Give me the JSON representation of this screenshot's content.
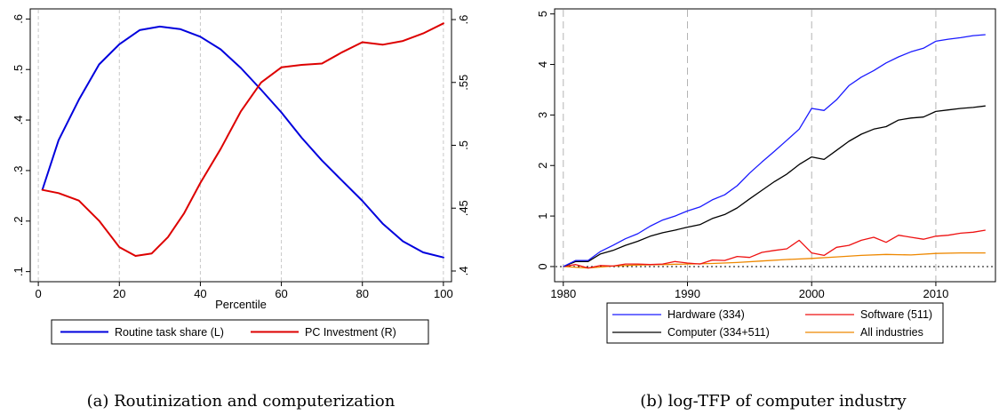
{
  "chart_data": [
    {
      "type": "line",
      "caption": "(a) Routinization and computerization",
      "xlabel": "Percentile",
      "xlim": [
        0,
        100
      ],
      "xticks": [
        0,
        20,
        40,
        60,
        80,
        100
      ],
      "xtick_labels": [
        "0",
        "20",
        "40",
        "60",
        "80",
        "100"
      ],
      "vgrid": [
        0,
        20,
        40,
        60,
        80,
        100
      ],
      "ylim_left": [
        0.1,
        0.6
      ],
      "yticks_left": [
        0.1,
        0.2,
        0.3,
        0.4,
        0.5,
        0.6
      ],
      "ytick_labels_left": [
        ".1",
        ".2",
        ".3",
        ".4",
        ".5",
        ".6"
      ],
      "ylim_right": [
        0.4,
        0.6
      ],
      "yticks_right": [
        0.4,
        0.45,
        0.5,
        0.55,
        0.6
      ],
      "ytick_labels_right": [
        ".4",
        ".45",
        ".5",
        ".55",
        ".6"
      ],
      "legend_position": "bottom",
      "series": [
        {
          "name": "Routine task share (L)",
          "axis": "left",
          "color": "#0000dd",
          "x": [
            1,
            5,
            10,
            15,
            20,
            25,
            30,
            35,
            40,
            45,
            50,
            55,
            60,
            65,
            70,
            75,
            80,
            85,
            90,
            95,
            100
          ],
          "y": [
            0.262,
            0.36,
            0.44,
            0.51,
            0.55,
            0.578,
            0.585,
            0.58,
            0.565,
            0.54,
            0.503,
            0.46,
            0.415,
            0.365,
            0.32,
            0.28,
            0.24,
            0.195,
            0.16,
            0.138,
            0.128
          ]
        },
        {
          "name": "PC Investment (R)",
          "axis": "right",
          "color": "#dd0000",
          "x": [
            1,
            5,
            10,
            15,
            20,
            24,
            28,
            32,
            36,
            40,
            45,
            50,
            55,
            60,
            65,
            70,
            75,
            80,
            85,
            90,
            95,
            100
          ],
          "y": [
            0.4645,
            0.462,
            0.456,
            0.44,
            0.419,
            0.412,
            0.414,
            0.427,
            0.446,
            0.47,
            0.497,
            0.527,
            0.55,
            0.562,
            0.564,
            0.565,
            0.574,
            0.582,
            0.58,
            0.583,
            0.589,
            0.597
          ]
        }
      ]
    },
    {
      "type": "line",
      "caption": "(b) log-TFP of computer industry",
      "xlim": [
        1979.3,
        2014.8
      ],
      "xticks": [
        1980,
        1990,
        2000,
        2010
      ],
      "xtick_labels": [
        "1980",
        "1990",
        "2000",
        "2010"
      ],
      "vgrid": [
        1980,
        1990,
        2000,
        2010
      ],
      "ylim": [
        -0.3,
        5.1
      ],
      "yticks": [
        0,
        1,
        2,
        3,
        4,
        5
      ],
      "ytick_labels": [
        "0",
        "1",
        "2",
        "3",
        "4",
        "5"
      ],
      "reference_line_y": 0,
      "legend_position": "bottom",
      "series": [
        {
          "name": "Hardware (334)",
          "color": "#1a1aff",
          "x": [
            1980,
            1981,
            1982,
            1983,
            1984,
            1985,
            1986,
            1987,
            1988,
            1989,
            1990,
            1991,
            1992,
            1993,
            1994,
            1995,
            1996,
            1997,
            1998,
            1999,
            2000,
            2001,
            2002,
            2003,
            2004,
            2005,
            2006,
            2007,
            2008,
            2009,
            2010,
            2011,
            2012,
            2013,
            2014
          ],
          "y": [
            0,
            0.12,
            0.12,
            0.3,
            0.42,
            0.55,
            0.65,
            0.8,
            0.92,
            1.0,
            1.1,
            1.18,
            1.32,
            1.42,
            1.6,
            1.85,
            2.07,
            2.28,
            2.5,
            2.72,
            3.13,
            3.09,
            3.3,
            3.58,
            3.75,
            3.88,
            4.03,
            4.15,
            4.25,
            4.32,
            4.46,
            4.5,
            4.53,
            4.57,
            4.59
          ]
        },
        {
          "name": "Software (511)",
          "color": "#ee1111",
          "x": [
            1980,
            1981,
            1982,
            1983,
            1984,
            1985,
            1986,
            1987,
            1988,
            1989,
            1990,
            1991,
            1992,
            1993,
            1994,
            1995,
            1996,
            1997,
            1998,
            1999,
            2000,
            2001,
            2002,
            2003,
            2004,
            2005,
            2006,
            2007,
            2008,
            2009,
            2010,
            2011,
            2012,
            2013,
            2014
          ],
          "y": [
            0,
            0.04,
            -0.03,
            0.02,
            0.01,
            0.05,
            0.05,
            0.04,
            0.05,
            0.1,
            0.07,
            0.05,
            0.13,
            0.12,
            0.2,
            0.18,
            0.28,
            0.32,
            0.35,
            0.52,
            0.27,
            0.22,
            0.38,
            0.42,
            0.52,
            0.58,
            0.48,
            0.62,
            0.58,
            0.54,
            0.6,
            0.62,
            0.66,
            0.68,
            0.72
          ]
        },
        {
          "name": "Computer (334+511)",
          "color": "#000000",
          "x": [
            1980,
            1981,
            1982,
            1983,
            1984,
            1985,
            1986,
            1987,
            1988,
            1989,
            1990,
            1991,
            1992,
            1993,
            1994,
            1995,
            1996,
            1997,
            1998,
            1999,
            2000,
            2001,
            2002,
            2003,
            2004,
            2005,
            2006,
            2007,
            2008,
            2009,
            2010,
            2011,
            2012,
            2013,
            2014
          ],
          "y": [
            0,
            0.1,
            0.1,
            0.25,
            0.32,
            0.42,
            0.5,
            0.6,
            0.67,
            0.72,
            0.78,
            0.83,
            0.95,
            1.03,
            1.16,
            1.34,
            1.51,
            1.68,
            1.83,
            2.02,
            2.17,
            2.12,
            2.3,
            2.48,
            2.62,
            2.72,
            2.77,
            2.9,
            2.94,
            2.96,
            3.07,
            3.1,
            3.13,
            3.15,
            3.18
          ]
        },
        {
          "name": "All industries",
          "color": "#ee8800",
          "x": [
            1980,
            1982,
            1984,
            1986,
            1988,
            1990,
            1992,
            1994,
            1996,
            1998,
            2000,
            2002,
            2004,
            2006,
            2008,
            2010,
            2012,
            2014
          ],
          "y": [
            0,
            -0.03,
            0.01,
            0.03,
            0.04,
            0.05,
            0.06,
            0.08,
            0.11,
            0.14,
            0.16,
            0.19,
            0.22,
            0.24,
            0.23,
            0.26,
            0.27,
            0.27
          ]
        }
      ]
    }
  ]
}
